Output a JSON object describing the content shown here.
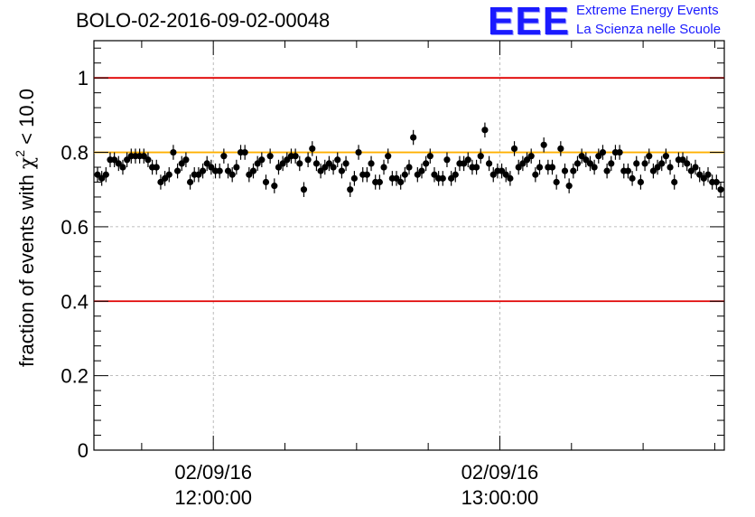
{
  "header": {
    "title": "BOLO-02-2016-09-02-00048",
    "logo_mark": "EEE",
    "logo_line1": "Extreme Energy Events",
    "logo_line2": "La Scienza nelle Scuole"
  },
  "chart_data": {
    "type": "scatter",
    "title": "BOLO-02-2016-09-02-00048",
    "ylabel_prefix": "fraction of events with ",
    "ylabel_symbol": "χ",
    "ylabel_sup": "2",
    "ylabel_suffix": " < 10.0",
    "ylim": [
      0,
      1.1
    ],
    "yticks": [
      "0",
      "0.2",
      "0.4",
      "0.6",
      "0.8",
      "1"
    ],
    "xlim": [
      "11:35",
      "13:47"
    ],
    "xticks": [
      {
        "date": "02/09/16",
        "time": "12:00:00"
      },
      {
        "date": "02/09/16",
        "time": "13:00:00"
      }
    ],
    "grid": true,
    "reference_lines": [
      {
        "y": 1.0,
        "color": "#e00000"
      },
      {
        "y": 0.8,
        "color": "#ffb000"
      },
      {
        "y": 0.4,
        "color": "#e00000"
      }
    ],
    "marker_color": "#000000",
    "error_bar": 0.02,
    "values": [
      0.74,
      0.73,
      0.74,
      0.78,
      0.78,
      0.77,
      0.76,
      0.78,
      0.79,
      0.79,
      0.79,
      0.79,
      0.78,
      0.76,
      0.76,
      0.72,
      0.73,
      0.74,
      0.8,
      0.75,
      0.77,
      0.78,
      0.72,
      0.74,
      0.74,
      0.75,
      0.77,
      0.76,
      0.75,
      0.75,
      0.79,
      0.75,
      0.74,
      0.76,
      0.8,
      0.8,
      0.74,
      0.75,
      0.77,
      0.78,
      0.72,
      0.79,
      0.71,
      0.76,
      0.77,
      0.78,
      0.79,
      0.79,
      0.77,
      0.7,
      0.78,
      0.81,
      0.77,
      0.75,
      0.76,
      0.77,
      0.76,
      0.78,
      0.75,
      0.77,
      0.7,
      0.73,
      0.8,
      0.74,
      0.74,
      0.77,
      0.72,
      0.72,
      0.76,
      0.79,
      0.73,
      0.73,
      0.72,
      0.74,
      0.76,
      0.84,
      0.74,
      0.75,
      0.77,
      0.79,
      0.74,
      0.73,
      0.73,
      0.78,
      0.73,
      0.74,
      0.77,
      0.77,
      0.78,
      0.76,
      0.76,
      0.79,
      0.86,
      0.77,
      0.74,
      0.75,
      0.75,
      0.74,
      0.73,
      0.81,
      0.76,
      0.77,
      0.78,
      0.79,
      0.74,
      0.76,
      0.82,
      0.76,
      0.76,
      0.72,
      0.81,
      0.75,
      0.71,
      0.75,
      0.77,
      0.79,
      0.78,
      0.77,
      0.76,
      0.79,
      0.8,
      0.75,
      0.77,
      0.8,
      0.8,
      0.75,
      0.75,
      0.73,
      0.77,
      0.72,
      0.77,
      0.79,
      0.75,
      0.76,
      0.77,
      0.79,
      0.76,
      0.72,
      0.78,
      0.78,
      0.77,
      0.75,
      0.76,
      0.74,
      0.73,
      0.74,
      0.72,
      0.72,
      0.7
    ]
  }
}
